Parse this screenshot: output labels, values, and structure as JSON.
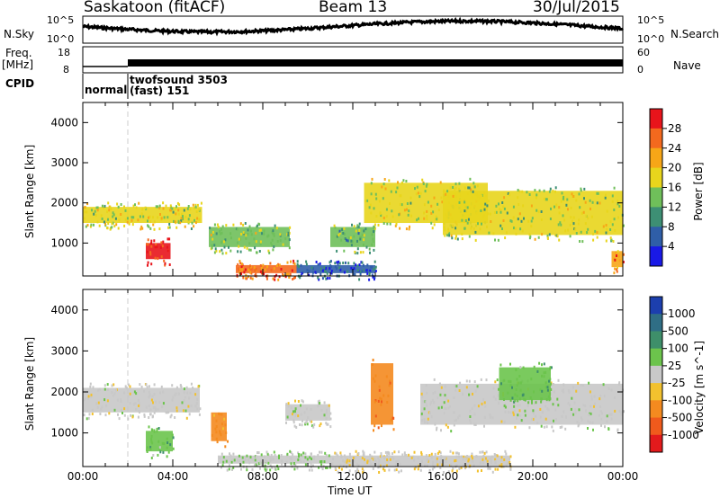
{
  "header": {
    "station": "Saskatoon (fitACF)",
    "beam": "Beam 13",
    "date": "30/Jul/2015"
  },
  "strips": {
    "nsky_label": "N.Sky",
    "nsky_ticks": [
      "10^5",
      "10^0"
    ],
    "nsearch_label": "N.Search",
    "nsearch_ticks": [
      "10^5",
      "10^0"
    ],
    "freq_label_1": "Freq.",
    "freq_label_2": "[MHz]",
    "freq_ticks": [
      "18",
      "8"
    ],
    "nave_label": "Nave",
    "nave_ticks": [
      "60",
      "0"
    ],
    "cpid_label": "CPID",
    "cpid_segments": [
      "normal",
      "twofsound 3503",
      "(fast) 151"
    ]
  },
  "axes": {
    "ylabel": "Slant Range [km]",
    "yticks": [
      "4000",
      "3000",
      "2000",
      "1000"
    ],
    "xlabel": "Time UT",
    "xticks": [
      "00:00",
      "04:00",
      "08:00",
      "12:00",
      "16:00",
      "20:00",
      "00:00"
    ]
  },
  "power_scale": {
    "label": "Power [dB]",
    "ticks": [
      "28",
      "24",
      "20",
      "16",
      "12",
      "8",
      "4"
    ],
    "colors": [
      "#e8141b",
      "#f4691e",
      "#f7a617",
      "#e8d51c",
      "#6fbf5a",
      "#3d8f74",
      "#2f5ea8",
      "#1919e6"
    ]
  },
  "velocity_scale": {
    "label": "Velocity [m s^-1]",
    "ticks": [
      "1000",
      "500",
      "100",
      "25",
      "-25",
      "-100",
      "-500",
      "-1000"
    ],
    "colors": [
      "#1c3fae",
      "#2f6e85",
      "#3e8f6a",
      "#6cc44c",
      "#c8c8c8",
      "#f2c12e",
      "#f48a1f",
      "#f05a1c",
      "#e31a1c"
    ]
  },
  "chart_data": {
    "type": "heatmap",
    "title": "Saskatoon (fitACF)  Beam 13  30/Jul/2015",
    "xlabel": "Time UT",
    "ylabel": "Slant Range [km]",
    "x_range": [
      "00:00",
      "24:00"
    ],
    "ylim": [
      180,
      4500
    ],
    "panels": [
      {
        "name": "Power",
        "unit": "dB",
        "zlim": [
          0,
          30
        ],
        "echo_regions": [
          {
            "t_start": 0.0,
            "t_end": 5.3,
            "range_km": [
              1500,
              1900
            ],
            "value": 16
          },
          {
            "t_start": 2.8,
            "t_end": 3.9,
            "range_km": [
              600,
              1000
            ],
            "value": 28
          },
          {
            "t_start": 5.6,
            "t_end": 9.2,
            "range_km": [
              900,
              1400
            ],
            "value": 14
          },
          {
            "t_start": 6.8,
            "t_end": 9.5,
            "range_km": [
              250,
              450
            ],
            "value": 24
          },
          {
            "t_start": 9.5,
            "t_end": 13.0,
            "range_km": [
              250,
              450
            ],
            "value": 6
          },
          {
            "t_start": 11.0,
            "t_end": 13.0,
            "range_km": [
              900,
              1400
            ],
            "value": 12
          },
          {
            "t_start": 12.5,
            "t_end": 18.0,
            "range_km": [
              1500,
              2500
            ],
            "value": 16
          },
          {
            "t_start": 16.0,
            "t_end": 24.0,
            "range_km": [
              1200,
              2300
            ],
            "value": 15
          },
          {
            "t_start": 23.5,
            "t_end": 24.0,
            "range_km": [
              400,
              800
            ],
            "value": 22
          }
        ]
      },
      {
        "name": "Velocity",
        "unit": "m s^-1",
        "zlim": [
          -1000,
          1000
        ],
        "echo_regions": [
          {
            "t_start": 0.0,
            "t_end": 5.2,
            "range_km": [
              1500,
              2100
            ],
            "value": 0
          },
          {
            "t_start": 2.8,
            "t_end": 4.0,
            "range_km": [
              550,
              1050
            ],
            "value": 250
          },
          {
            "t_start": 5.7,
            "t_end": 6.4,
            "range_km": [
              800,
              1500
            ],
            "value": -400
          },
          {
            "t_start": 6.0,
            "t_end": 11.0,
            "range_km": [
              250,
              450
            ],
            "value": 80
          },
          {
            "t_start": 11.0,
            "t_end": 19.0,
            "range_km": [
              200,
              450
            ],
            "value": -60
          },
          {
            "t_start": 9.0,
            "t_end": 11.0,
            "range_km": [
              1300,
              1700
            ],
            "value": 0
          },
          {
            "t_start": 12.8,
            "t_end": 13.8,
            "range_km": [
              1200,
              2700
            ],
            "value": -500
          },
          {
            "t_start": 15.0,
            "t_end": 24.0,
            "range_km": [
              1200,
              2200
            ],
            "value": 0
          },
          {
            "t_start": 18.5,
            "t_end": 20.8,
            "range_km": [
              1800,
              2600
            ],
            "value": 250
          }
        ]
      }
    ]
  }
}
